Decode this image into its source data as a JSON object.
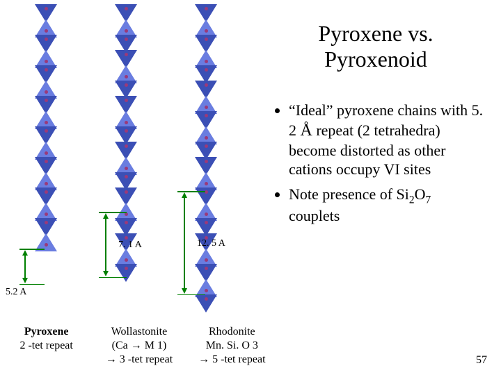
{
  "title_line1": "Pyroxene vs.",
  "title_line2": "Pyroxenoid",
  "bullet1_pre": "“Ideal” pyroxene chains with 5. 2 ",
  "bullet1_ang": "Å",
  "bullet1_post": " repeat (2 tetrahedra) become distorted as other cations occupy VI sites",
  "bullet2_pre": "Note presence of Si",
  "bullet2_sub1": "2",
  "bullet2_mid": "O",
  "bullet2_sub2": "7",
  "bullet2_post": " couplets",
  "dims": {
    "pyx": "5.2 A",
    "wol": "7. 1 A",
    "rho": "12. 5 A"
  },
  "captions": {
    "pyx": {
      "name": "Pyroxene",
      "sub": "2 -tet repeat"
    },
    "wol": {
      "name": "Wollastonite",
      "sub1": "(Ca → M 1)",
      "sub2": "→ 3 -tet repeat"
    },
    "rho": {
      "name": "Rhodonite",
      "sub1": "Mn. Si. O 3",
      "sub2": "→ 5 -tet repeat"
    }
  },
  "slide_number": "57",
  "colors": {
    "tet_blue": "#3b4fb5",
    "tet_blue_lt": "#6a7de0",
    "apex": "#9a3a7a",
    "dim": "#008000",
    "text": "#000000",
    "bg": "#ffffff"
  },
  "chains": {
    "pyroxene": {
      "tetrahedra": 16,
      "pattern": "alternating",
      "repeat_tet": 2
    },
    "wollastonite": {
      "tetrahedra": 18,
      "pattern": "3-group",
      "repeat_tet": 3
    },
    "rhodonite": {
      "tetrahedra": 20,
      "pattern": "5-group",
      "repeat_tet": 5
    }
  }
}
